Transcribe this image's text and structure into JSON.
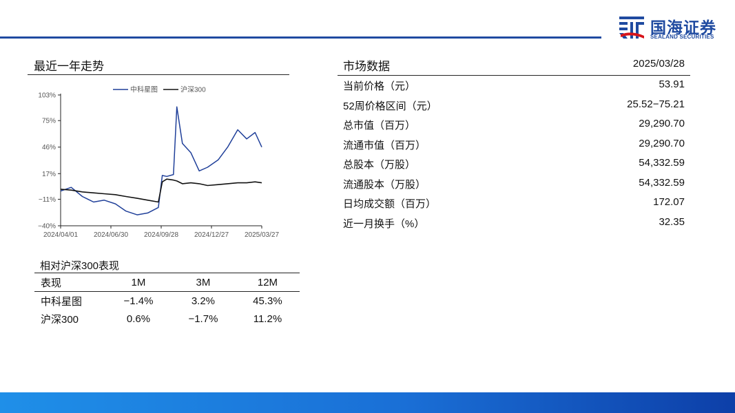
{
  "header": {
    "logo_cn": "国海证券",
    "logo_en": "SEALAND SECURITIES",
    "brand_color": "#1f4aa0"
  },
  "trend": {
    "title": "最近一年走势"
  },
  "chart_data": {
    "type": "line",
    "title": "",
    "xlabel": "",
    "ylabel": "",
    "x_ticks": [
      "2024/04/01",
      "2024/06/30",
      "2024/09/28",
      "2024/12/27",
      "2025/03/27"
    ],
    "y_ticks": [
      "103%",
      "75%",
      "46%",
      "17%",
      "−11%",
      "−40%"
    ],
    "y_tick_values": [
      103,
      75,
      46,
      17,
      -11,
      -40
    ],
    "ylim": [
      -40,
      103
    ],
    "legend_position": "top",
    "grid": false,
    "x": [
      "2024/04/01",
      "2024/04/20",
      "2024/05/10",
      "2024/05/30",
      "2024/06/18",
      "2024/07/08",
      "2024/07/27",
      "2024/08/16",
      "2024/09/04",
      "2024/09/23",
      "2024/09/30",
      "2024/10/08",
      "2024/10/20",
      "2024/10/26",
      "2024/11/05",
      "2024/11/20",
      "2024/12/05",
      "2024/12/20",
      "2025/01/08",
      "2025/01/25",
      "2025/02/12",
      "2025/02/28",
      "2025/03/15",
      "2025/03/27"
    ],
    "series": [
      {
        "name": "中科星图",
        "color": "#1f3f99",
        "values": [
          -2,
          2,
          -8,
          -14,
          -12,
          -16,
          -24,
          -28,
          -26,
          -20,
          15,
          14,
          16,
          90,
          50,
          40,
          20,
          24,
          32,
          46,
          65,
          55,
          62,
          46
        ]
      },
      {
        "name": "沪深300",
        "color": "#111111",
        "values": [
          0,
          -1,
          -3,
          -4,
          -5,
          -6,
          -8,
          -10,
          -12,
          -14,
          8,
          11,
          10,
          9,
          6,
          7,
          6,
          4,
          5,
          6,
          7,
          7,
          8,
          7
        ]
      }
    ]
  },
  "performance": {
    "title": "相对沪深300表现",
    "headers": [
      "表现",
      "1M",
      "3M",
      "12M"
    ],
    "rows": [
      [
        "中科星图",
        "−1.4%",
        "3.2%",
        "45.3%"
      ],
      [
        "沪深300",
        "0.6%",
        "−1.7%",
        "11.2%"
      ]
    ]
  },
  "market": {
    "title": "市场数据",
    "date": "2025/03/28",
    "rows": [
      {
        "label": "当前价格（元）",
        "value": "53.91"
      },
      {
        "label": "52周价格区间（元）",
        "value": "25.52−75.21"
      },
      {
        "label": "总市值（百万）",
        "value": "29,290.70"
      },
      {
        "label": "流通市值（百万）",
        "value": "29,290.70"
      },
      {
        "label": "总股本（万股）",
        "value": "54,332.59"
      },
      {
        "label": "流通股本（万股）",
        "value": "54,332.59"
      },
      {
        "label": "日均成交额（百万）",
        "value": "172.07"
      },
      {
        "label": "近一月换手（%）",
        "value": "32.35"
      }
    ]
  }
}
